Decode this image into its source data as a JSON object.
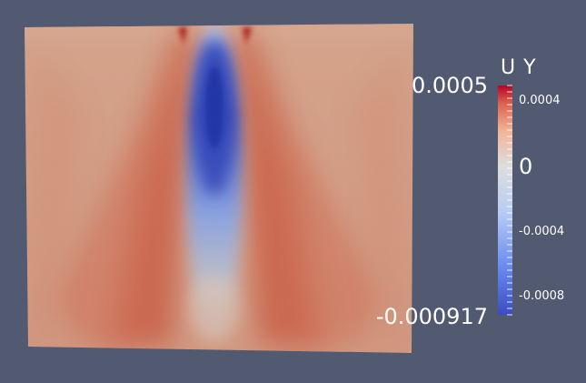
{
  "legend": {
    "title": "U Y",
    "range_max": "0.0005",
    "range_min": "-0.000917",
    "ticks": [
      {
        "label": "0.0004",
        "value": 0.0004
      },
      {
        "label": "0",
        "value": 0
      },
      {
        "label": "-0.0004",
        "value": -0.0004
      },
      {
        "label": "-0.0008",
        "value": -0.0008
      }
    ],
    "colormap_low": "#3b4cc0",
    "colormap_mid": "#dddddd",
    "colormap_high": "#b40426"
  },
  "colors": {
    "background": "#525a72",
    "field_base": "#d49a80"
  }
}
